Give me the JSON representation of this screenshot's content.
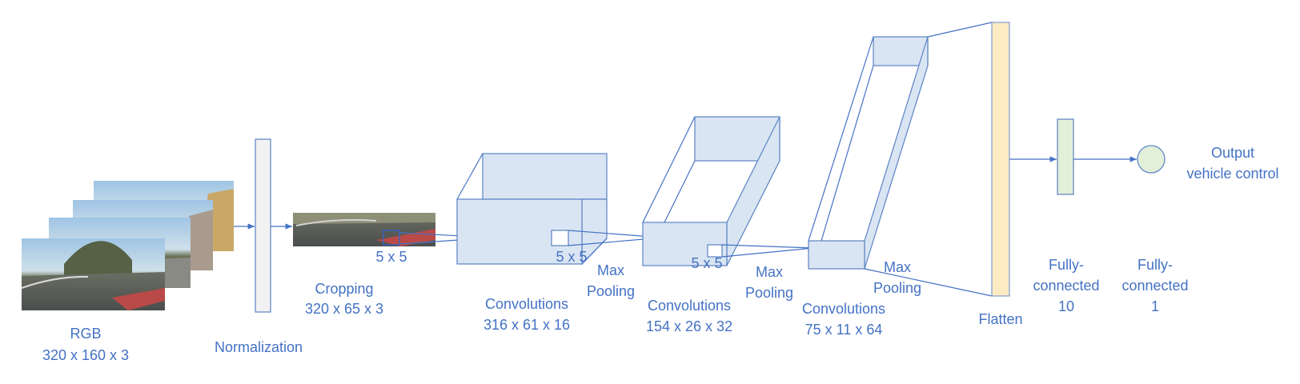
{
  "labels": {
    "rgb": "RGB",
    "rgb_dims": "320 x 160 x 3",
    "normalization": "Normalization",
    "cropping": "Cropping",
    "cropping_dims": "320 x 65 x 3",
    "kernel": "5 x 5",
    "conv1": "Convolutions",
    "conv1_dims": "316 x 61 x 16",
    "conv2": "Convolutions",
    "conv2_dims": "154 x 26 x 32",
    "conv3": "Convolutions",
    "conv3_dims": "75 x 11 x 64",
    "max": "Max",
    "pooling": "Pooling",
    "flatten": "Flatten",
    "fully": "Fully-",
    "connected": "connected",
    "fc1_size": "10",
    "fc2_size": "1",
    "output": "Output",
    "output_sub": "vehicle control"
  },
  "colors": {
    "text": "#4472c4",
    "volume_fill": "#dae5f3",
    "flatten_fill": "#fdebc4",
    "fc_fill": "#e2efd9",
    "norm_fill": "#f2f2f2"
  }
}
